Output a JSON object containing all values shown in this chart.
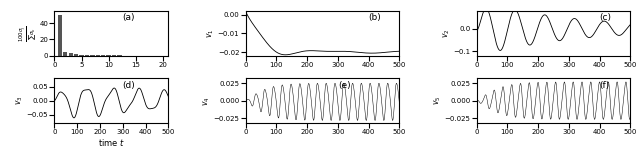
{
  "figsize": [
    6.4,
    1.54
  ],
  "dpi": 100,
  "panel_labels": [
    "(a)",
    "(b)",
    "(c)",
    "(d)",
    "(e)",
    "(f)"
  ],
  "bar_color": "#555555",
  "line_color": "black",
  "n_bars": 21,
  "sv": [
    50.0,
    4.5,
    2.8,
    1.9,
    1.3,
    0.9,
    0.75,
    0.6,
    0.5,
    0.42,
    0.36,
    0.31,
    0.27,
    0.24,
    0.21,
    0.18,
    0.16,
    0.14,
    0.12,
    0.1,
    0.08
  ],
  "bar_yticks": [
    0,
    20,
    40
  ],
  "bar_ylim": [
    0,
    55
  ],
  "series_xticks": [
    0,
    100,
    200,
    300,
    400,
    500
  ],
  "v1_yticks": [
    0.0,
    -0.01,
    -0.02
  ],
  "v1_ylim": [
    -0.022,
    0.002
  ],
  "v2_yticks": [
    -0.1,
    0.0
  ],
  "v2_ylim": [
    -0.12,
    0.08
  ],
  "v3_yticks": [
    -0.05,
    0.0,
    0.05
  ],
  "v3_ylim": [
    -0.08,
    0.08
  ],
  "v45_yticks": [
    -0.025,
    0.0,
    0.025
  ],
  "v45_ylim": [
    -0.032,
    0.032
  ]
}
